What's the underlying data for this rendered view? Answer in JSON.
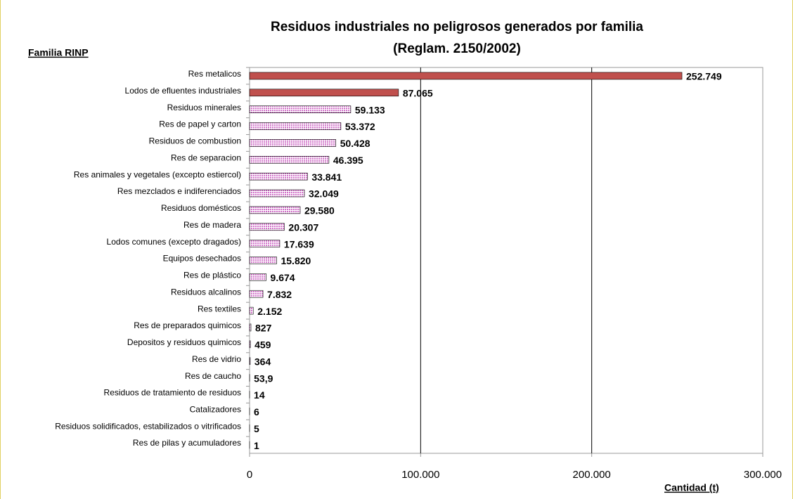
{
  "chart_data": {
    "type": "barh",
    "title": [
      "Residuos industriales no peligrosos generados por familia",
      "(Reglam. 2150/2002)"
    ],
    "y_label": "Familia RINP",
    "x_label": "Cantidad (t)",
    "categories": [
      "Res metalicos",
      "Lodos de efluentes industriales",
      "Residuos minerales",
      "Res de papel y carton",
      "Residuos de combustion",
      "Res de separacion",
      "Res animales y vegetales (excepto estiercol)",
      "Res mezclados e indiferenciados",
      "Residuos domésticos",
      "Res de madera",
      "Lodos comunes (excepto dragados)",
      "Equipos desechados",
      "Res de plástico",
      "Residuos alcalinos",
      "Res textiles",
      "Res de preparados quimicos",
      "Depositos y residuos quimicos",
      "Res de vidrio",
      "Res de caucho",
      "Residuos de tratamiento de residuos",
      "Catalizadores",
      "Residuos solidificados, estabilizados o vitrificados",
      "Res de pilas y acumuladores"
    ],
    "values": [
      252749,
      87065,
      59133,
      53372,
      50428,
      46395,
      33841,
      32049,
      29580,
      20307,
      17639,
      15820,
      9674,
      7832,
      2152,
      827,
      459,
      364,
      53.9,
      14,
      6,
      5,
      1
    ],
    "value_labels": [
      "252.749",
      "87.065",
      "59.133",
      "53.372",
      "50.428",
      "46.395",
      "33.841",
      "32.049",
      "29.580",
      "20.307",
      "17.639",
      "15.820",
      "9.674",
      "7.832",
      "2.152",
      "827",
      "459",
      "364",
      "53,9",
      "14",
      "6",
      "5",
      "1"
    ],
    "colors": [
      "#c0504d",
      "#c0504d",
      "#d070c8",
      "#d070c8",
      "#d070c8",
      "#d070c8",
      "#d070c8",
      "#d070c8",
      "#d070c8",
      "#d070c8",
      "#d070c8",
      "#d070c8",
      "#d070c8",
      "#d070c8",
      "#d070c8",
      "#d070c8",
      "#d070c8",
      "#d070c8",
      "#d070c8",
      "#d070c8",
      "#d070c8",
      "#d070c8",
      "#d070c8"
    ],
    "hatched": [
      false,
      false,
      true,
      true,
      true,
      true,
      true,
      true,
      true,
      true,
      true,
      true,
      true,
      true,
      true,
      true,
      true,
      true,
      true,
      true,
      true,
      true,
      true
    ],
    "xlim": [
      0,
      300000
    ],
    "xticks": [
      0,
      {
        "value": 100000,
        "label": "100.000"
      },
      {
        "value": 200000,
        "label": "200.000"
      },
      {
        "value": 300000,
        "label": "300.000"
      }
    ],
    "grid": true
  }
}
